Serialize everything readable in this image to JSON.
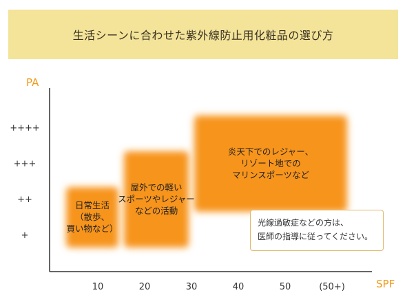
{
  "title": "生活シーンに合わせた紫外線防止用化粧品の選び方",
  "colors": {
    "banner": "#f3e49a",
    "axis_label": "#f29a1a",
    "region_fill": "#f7941d",
    "note_border": "#e2b86a"
  },
  "chart_data": {
    "type": "area",
    "xlabel": "SPF",
    "ylabel": "PA",
    "x_ticks": [
      "10",
      "20",
      "30",
      "40",
      "50",
      "(50+)"
    ],
    "y_ticks": [
      "+",
      "++",
      "+++",
      "++++"
    ],
    "regions": [
      {
        "lines": [
          "日常生活",
          "（散歩、",
          "買い物など）"
        ],
        "spf_range": [
          0,
          15
        ],
        "pa_range": [
          1,
          2
        ]
      },
      {
        "lines": [
          "屋外での軽い",
          "スポーツやレジャー",
          "などの活動"
        ],
        "spf_range": [
          15,
          30
        ],
        "pa_range": [
          1,
          3
        ]
      },
      {
        "lines": [
          "炎天下でのレジャー、",
          "リゾート地での",
          "マリンスポーツなど"
        ],
        "spf_range": [
          30,
          60
        ],
        "pa_range": [
          2,
          4
        ]
      }
    ]
  },
  "note": {
    "lines": [
      "光線過敏症などの方は、",
      "医師の指導に従ってください。"
    ]
  }
}
